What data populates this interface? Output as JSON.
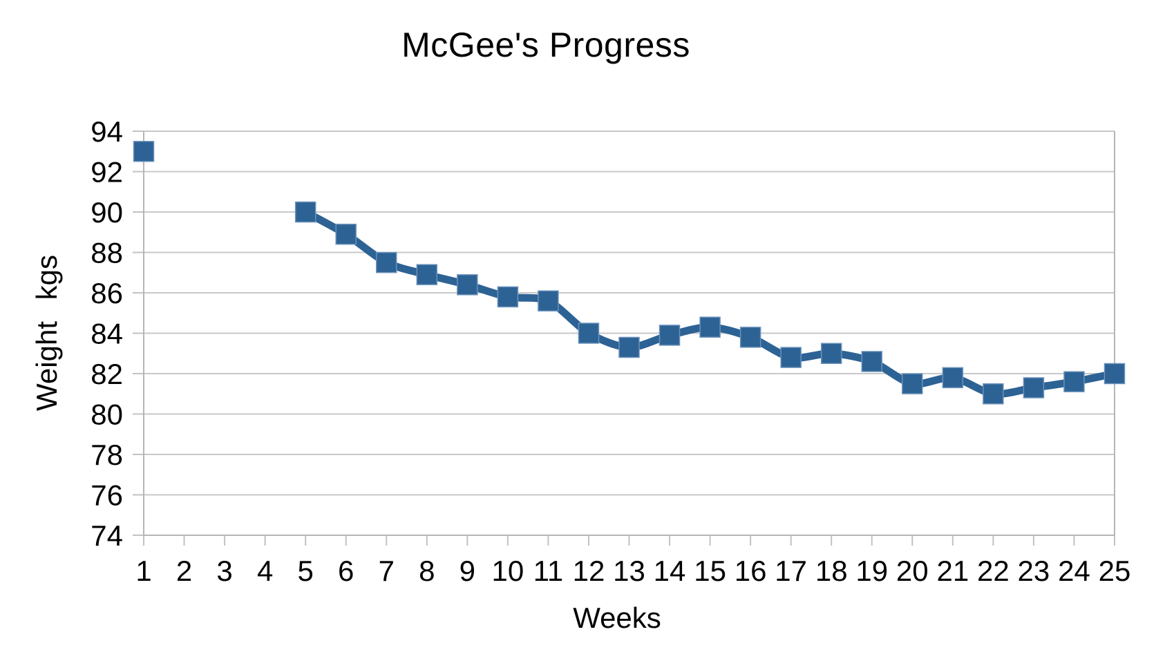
{
  "chart_data": {
    "type": "line",
    "title": "McGee's Progress",
    "xlabel": "Weeks",
    "ylabel": "Weight kgs",
    "x": [
      1,
      2,
      3,
      4,
      5,
      6,
      7,
      8,
      9,
      10,
      11,
      12,
      13,
      14,
      15,
      16,
      17,
      18,
      19,
      20,
      21,
      22,
      23,
      24,
      25
    ],
    "values": [
      93,
      null,
      null,
      null,
      90,
      88.9,
      87.5,
      86.9,
      86.4,
      85.8,
      85.6,
      84,
      83.3,
      83.9,
      84.3,
      83.8,
      82.8,
      83,
      82.6,
      81.5,
      81.8,
      81,
      81.3,
      81.6,
      82
    ],
    "ylim": [
      74,
      94
    ],
    "ytick_step": 2,
    "grid": "horizontal",
    "legend": "none",
    "marker": "square",
    "line_smoothing": "curved",
    "series_color": "#2D6295",
    "marker_edge_color": "#6B92BA",
    "gridline_color": "#C8C8C8",
    "axis_color": "#B5B5B5",
    "tick_color": "#C2C2C2",
    "text_color": "#000000"
  }
}
